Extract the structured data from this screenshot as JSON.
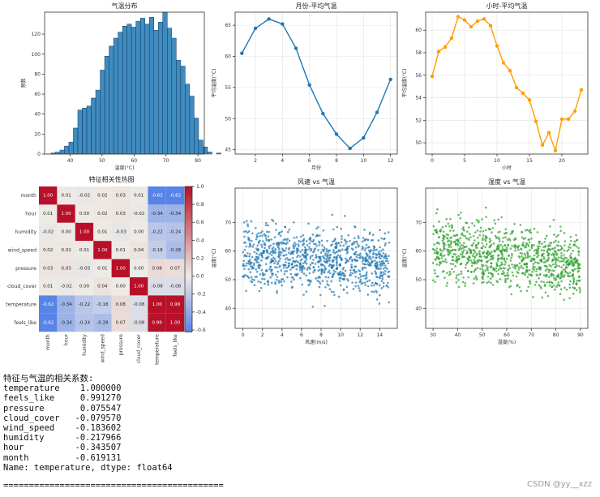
{
  "chart_data": [
    {
      "id": "hist",
      "type": "bar",
      "title": "气温分布",
      "xlabel": "温度(°C)",
      "ylabel": "频数",
      "xlim": [
        32,
        82
      ],
      "ylim": [
        0,
        142
      ],
      "xticks": [
        40,
        50,
        60,
        70,
        80
      ],
      "yticks": [
        0,
        20,
        40,
        60,
        80,
        100,
        120
      ],
      "bin_start": 34,
      "bin_width": 1.4,
      "values": [
        1,
        2,
        4,
        8,
        12,
        26,
        44,
        46,
        48,
        56,
        64,
        84,
        98,
        108,
        116,
        122,
        128,
        130,
        127,
        133,
        136,
        130,
        137,
        124,
        132,
        142,
        126,
        116,
        94,
        88,
        70,
        58,
        36,
        14,
        7,
        2,
        0,
        1
      ],
      "color": "#1f77b4"
    },
    {
      "id": "month",
      "type": "line",
      "title": "月份-平均气温",
      "xlabel": "月份",
      "ylabel": "平均温度(°C)",
      "x": [
        1,
        2,
        3,
        4,
        5,
        6,
        7,
        8,
        9,
        10,
        11,
        12
      ],
      "y": [
        60.5,
        64.5,
        66.0,
        65.2,
        61.3,
        55.4,
        50.8,
        47.5,
        45.2,
        46.9,
        51.0,
        56.3
      ],
      "xlim": [
        0.5,
        12.5
      ],
      "ylim": [
        44.3,
        67.1
      ],
      "xticks": [
        2,
        4,
        6,
        8,
        10,
        12
      ],
      "yticks": [
        45,
        50,
        55,
        60,
        65
      ],
      "grid": true,
      "color": "#1f77b4"
    },
    {
      "id": "hour",
      "type": "line",
      "title": "小时-平均气温",
      "xlabel": "小时",
      "ylabel": "平均温度(°C)",
      "x": [
        0,
        1,
        2,
        3,
        4,
        5,
        6,
        7,
        8,
        9,
        10,
        11,
        12,
        13,
        14,
        15,
        16,
        17,
        18,
        19,
        20,
        21,
        22,
        23
      ],
      "y": [
        55.9,
        58.1,
        58.5,
        59.3,
        61.2,
        60.9,
        60.3,
        60.8,
        61.0,
        60.4,
        58.6,
        57.1,
        56.4,
        54.9,
        54.4,
        53.8,
        51.9,
        49.8,
        50.9,
        49.3,
        52.1,
        52.1,
        52.8,
        54.7
      ],
      "xlim": [
        -1,
        24
      ],
      "ylim": [
        49.0,
        61.6
      ],
      "xticks": [
        0,
        5,
        10,
        15,
        20
      ],
      "yticks": [
        50,
        52,
        54,
        56,
        58,
        60
      ],
      "grid": true,
      "color": "#ff9e00"
    },
    {
      "id": "heatmap",
      "type": "heatmap",
      "title": "特征相关性热图",
      "labels": [
        "month",
        "hour",
        "humidity",
        "wind_speed",
        "pressure",
        "cloud_cover",
        "temperature",
        "feels_like"
      ],
      "values": [
        [
          1.0,
          0.01,
          -0.02,
          0.02,
          0.03,
          0.01,
          -0.62,
          -0.62
        ],
        [
          0.01,
          1.0,
          0.0,
          0.02,
          0.03,
          -0.02,
          -0.34,
          -0.34
        ],
        [
          -0.02,
          0.0,
          1.0,
          0.01,
          -0.03,
          -0.0,
          -0.22,
          -0.24
        ],
        [
          0.02,
          0.02,
          0.01,
          1.0,
          0.01,
          0.04,
          -0.18,
          -0.28
        ],
        [
          0.03,
          0.03,
          -0.03,
          0.01,
          1.0,
          -0.0,
          0.08,
          0.07
        ],
        [
          0.01,
          -0.02,
          -0.0,
          0.04,
          -0.0,
          1.0,
          -0.08,
          -0.08
        ],
        [
          -0.62,
          -0.34,
          -0.22,
          -0.18,
          0.08,
          -0.08,
          1.0,
          0.99
        ],
        [
          -0.62,
          -0.34,
          -0.24,
          -0.28,
          0.07,
          -0.08,
          0.99,
          1.0
        ]
      ],
      "colorbar_ticks": [
        1.0,
        0.8,
        0.6,
        0.4,
        0.2,
        0.0,
        -0.2,
        -0.4,
        -0.6
      ],
      "vmin": -0.62,
      "vmax": 1.0
    },
    {
      "id": "wind",
      "type": "scatter",
      "title": "风速 vs 气温",
      "xlabel": "风速(m/s)",
      "ylabel": "温度(°C)",
      "xlim": [
        -0.8,
        15.8
      ],
      "ylim": [
        33,
        82
      ],
      "xticks": [
        0,
        2,
        4,
        6,
        8,
        10,
        12,
        14
      ],
      "yticks": [
        40,
        50,
        60,
        70
      ],
      "x_range": [
        0,
        15
      ],
      "y_center": 57,
      "y_spread": 9,
      "n_points": 1000,
      "color": "#1f77b4"
    },
    {
      "id": "humid",
      "type": "scatter",
      "title": "湿度 vs 气温",
      "xlabel": "湿度(%)",
      "ylabel": "温度(°C)",
      "xlim": [
        27,
        93
      ],
      "ylim": [
        33,
        82
      ],
      "xticks": [
        30,
        40,
        50,
        60,
        70,
        80,
        90
      ],
      "yticks": [
        40,
        50,
        60,
        70
      ],
      "x_range": [
        30,
        90
      ],
      "y_center": 58,
      "y_spread": 9,
      "n_points": 1000,
      "color": "#2ca02c"
    }
  ],
  "console": {
    "heading": "特征与气温的相关系数:",
    "rows": [
      "temperature    1.000000",
      "feels_like     0.991270",
      "pressure       0.075547",
      "cloud_cover   -0.079570",
      "wind_speed    -0.183602",
      "humidity      -0.217966",
      "hour          -0.343507",
      "month         -0.619131"
    ],
    "footer": "Name: temperature, dtype: float64",
    "separator": "==========================================="
  },
  "watermark": "CSDN @yy__xzz"
}
